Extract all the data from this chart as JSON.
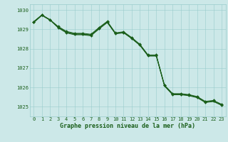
{
  "background_color": "#cce8e8",
  "plot_bg_color": "#cce8e8",
  "grid_color": "#99cccc",
  "line_color": "#1a5e1a",
  "marker_color": "#1a5e1a",
  "xlabel": "Graphe pression niveau de la mer (hPa)",
  "xlabel_fontsize": 6.0,
  "xlabel_color": "#1a5e1a",
  "ylim": [
    1024.5,
    1030.3
  ],
  "xlim": [
    -0.5,
    23.5
  ],
  "yticks": [
    1025,
    1026,
    1027,
    1028,
    1029,
    1030
  ],
  "xticks": [
    0,
    1,
    2,
    3,
    4,
    5,
    6,
    7,
    8,
    9,
    10,
    11,
    12,
    13,
    14,
    15,
    16,
    17,
    18,
    19,
    20,
    21,
    22,
    23
  ],
  "series": [
    [
      1029.4,
      1029.75,
      1029.5,
      1029.1,
      1028.85,
      1028.75,
      1028.75,
      1028.7,
      1029.05,
      1029.38,
      1028.8,
      1028.85,
      1028.55,
      1028.2,
      1027.65,
      1027.65,
      1026.1,
      1025.65,
      1025.65,
      1025.6,
      1025.5,
      1025.25,
      1025.3,
      1025.1
    ],
    [
      1029.35,
      1029.72,
      1029.48,
      1029.08,
      1028.82,
      1028.72,
      1028.72,
      1028.67,
      1029.02,
      1029.35,
      1028.77,
      1028.82,
      1028.52,
      1028.17,
      1027.62,
      1027.62,
      1026.07,
      1025.62,
      1025.62,
      1025.57,
      1025.47,
      1025.22,
      1025.27,
      1025.07
    ],
    [
      1029.4,
      1029.75,
      1029.5,
      1029.15,
      1028.9,
      1028.8,
      1028.8,
      1028.75,
      1029.1,
      1029.42,
      1028.82,
      1028.88,
      1028.58,
      1028.23,
      1027.68,
      1027.68,
      1026.13,
      1025.68,
      1025.68,
      1025.63,
      1025.53,
      1025.28,
      1025.33,
      1025.13
    ],
    [
      1029.38,
      1029.73,
      1029.48,
      1029.12,
      1028.87,
      1028.77,
      1028.77,
      1028.72,
      1029.07,
      1029.4,
      1028.79,
      1028.85,
      1028.55,
      1028.2,
      1027.65,
      1027.65,
      1026.1,
      1025.65,
      1025.65,
      1025.6,
      1025.5,
      1025.25,
      1025.3,
      1025.1
    ]
  ],
  "series_markers": [
    true,
    false,
    true,
    false
  ],
  "tick_fontsize": 5.0,
  "tick_color": "#1a5e1a",
  "linewidth": 0.7,
  "markersize": 2.0
}
